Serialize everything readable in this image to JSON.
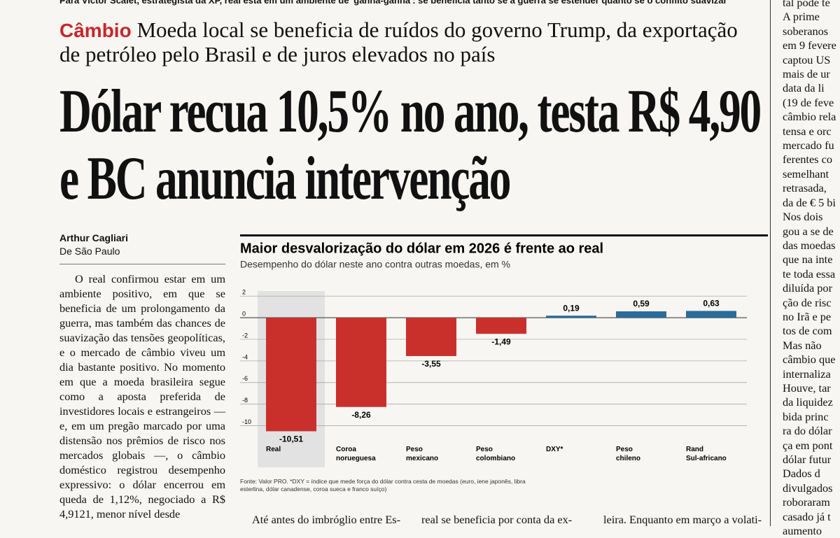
{
  "top_line": "Para Victor Scalet, estrategista da XP, real está em um ambiente de 'ganha-ganha': se beneficia tanto se a guerra se estender quanto se o conflito suavizar",
  "kicker": "Câmbio",
  "deck": "Moeda local se beneficia de ruídos do governo Trump, da exportação de petróleo pelo Brasil e de juros elevados no país",
  "headline": "Dólar recua 10,5% no ano, testa R$ 4,90 e BC anuncia intervenção",
  "byline": {
    "author": "Arthur Cagliari",
    "place": "De São Paulo"
  },
  "body": "O real confirmou estar em um ambiente positivo, em que se beneficia de um prolongamento da guerra, mas também das chances de suavização das tensões geopolíticas, e o mercado de câmbio viveu um dia bastante positivo. No momento em que a moeda brasileira segue como a aposta preferida de investidores locais e estrangeiros — e, em um pregão marcado por uma distensão nos prêmios de risco nos mercados globais —, o câmbio doméstico registrou desempenho expressivo: o dólar encerrou em queda de 1,12%, negociado a R$ 4,9121, menor nível desde",
  "column_starts": [
    "Até antes do imbróglio entre Es-",
    "real se beneficia por conta da ex-",
    "leira. Enquanto em março a volati-"
  ],
  "right_column": [
    "tal pode te",
    "A prime",
    "soberanos",
    "em 9 fevere",
    "captou US",
    "mais de ur",
    "data da li",
    "(19 de feve",
    "câmbio rela",
    "tensa e orc",
    "mercado fu",
    "ferentes co",
    "semelhant",
    "retrasada,",
    "da de € 5 bi",
    "Nos dois",
    "gou a se de",
    "das moedas",
    "que na inte",
    "te toda essa",
    "diluída por",
    "ção de risc",
    "no Irã e pe",
    "tos de com",
    "Mas não",
    "câmbio que",
    "internaliza",
    "Houve, tar",
    "da liquidez",
    "bida princ",
    "ra do dólar",
    "ça em pont",
    "dólar futur",
    "Dados d",
    "divulgados",
    "roboraram",
    "casado já t",
    "aumento"
  ],
  "chart_data": {
    "type": "bar",
    "title": "Maior desvalorização do dólar em 2026 é frente ao real",
    "subtitle": "Desempenho do dólar neste ano contra outras moedas, em %",
    "categories": [
      "Real",
      "Coroa norueguesa",
      "Peso mexicano",
      "Peso colombiano",
      "DXY*",
      "Peso chileno",
      "Rand Sul-africano"
    ],
    "values": [
      -10.51,
      -8.26,
      -3.55,
      -1.49,
      0.19,
      0.59,
      0.63
    ],
    "value_labels": [
      "-10,51",
      "-8,26",
      "-3,55",
      "-1,49",
      "0,19",
      "0,59",
      "0,63"
    ],
    "color_negative": "#c9302c",
    "color_positive": "#2b6a9a",
    "highlight_index": 0,
    "ylim": [
      -11,
      2.6
    ],
    "yticks": [
      2,
      0,
      -2,
      -4,
      -6,
      -8,
      -10
    ],
    "grid": true,
    "source": "Fonte: Valor PRO. *DXY = índice que mede força do dólar contra cesta de moedas (euro, iene japonês, libra esterlina, dólar canadense, coroa sueca e franco suíço)"
  }
}
